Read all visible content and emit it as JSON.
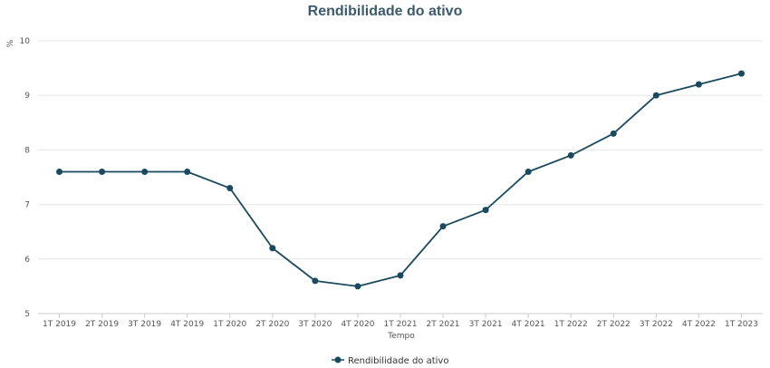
{
  "chart_data": {
    "type": "line",
    "title": "Rendibilidade do ativo",
    "xlabel": "Tempo",
    "ylabel": "%",
    "ylim": [
      5,
      10
    ],
    "yticks": [
      5,
      6,
      7,
      8,
      9,
      10
    ],
    "grid": true,
    "legend_position": "bottom-center",
    "categories": [
      "1T 2019",
      "2T 2019",
      "3T 2019",
      "4T 2019",
      "1T 2020",
      "2T 2020",
      "3T 2020",
      "4T 2020",
      "1T 2021",
      "2T 2021",
      "3T 2021",
      "4T 2021",
      "1T 2022",
      "2T 2022",
      "3T 2022",
      "4T 2022",
      "1T 2023"
    ],
    "series": [
      {
        "name": "Rendibilidade do ativo",
        "color": "#1b4a5e",
        "values": [
          7.6,
          7.6,
          7.6,
          7.6,
          7.3,
          6.2,
          5.6,
          5.5,
          5.7,
          6.6,
          6.9,
          7.6,
          7.9,
          8.3,
          9.0,
          9.2,
          9.4
        ]
      }
    ]
  }
}
